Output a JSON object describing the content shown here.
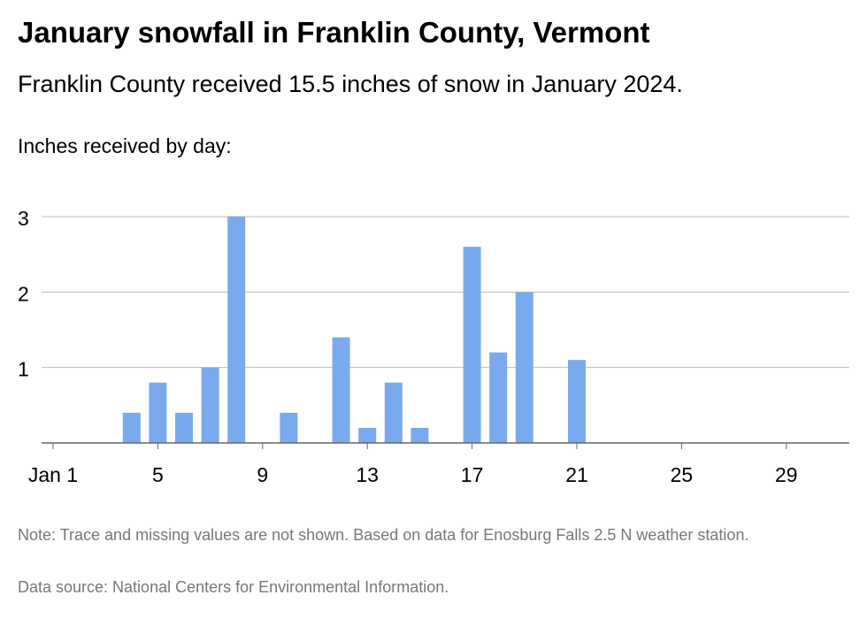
{
  "header": {
    "title": "January snowfall in Franklin County, Vermont",
    "subtitle": "Franklin County received 15.5 inches of snow in January 2024."
  },
  "footer": {
    "note": "Note: Trace and missing values are not shown. Based on data for Enosburg Falls 2.5 N weather station.",
    "source": "Data source: National Centers for Environmental Information."
  },
  "colors": {
    "bar": "#7aaaee",
    "grid": "#bbbbbb",
    "axis": "#666666"
  },
  "chart_data": {
    "type": "bar",
    "title": "January snowfall in Franklin County, Vermont",
    "subtitle": "Franklin County received 15.5 inches of snow in January 2024.",
    "ylabel": "Inches received by day:",
    "xlabel": "",
    "x": [
      4,
      5,
      6,
      7,
      8,
      10,
      12,
      13,
      14,
      15,
      17,
      18,
      19,
      21
    ],
    "values": [
      0.4,
      0.8,
      0.4,
      1.0,
      3.0,
      0.4,
      1.4,
      0.2,
      0.8,
      0.2,
      2.6,
      1.2,
      2.0,
      1.1
    ],
    "xlim": [
      1,
      31
    ],
    "ylim": [
      0,
      3
    ],
    "x_ticks": [
      1,
      5,
      9,
      13,
      17,
      21,
      25,
      29
    ],
    "x_tick_labels": [
      "Jan 1",
      "5",
      "9",
      "13",
      "17",
      "21",
      "25",
      "29"
    ],
    "y_ticks": [
      1,
      2,
      3
    ],
    "y_tick_labels": [
      "1",
      "2",
      "3"
    ],
    "grid": true,
    "legend": "none"
  }
}
